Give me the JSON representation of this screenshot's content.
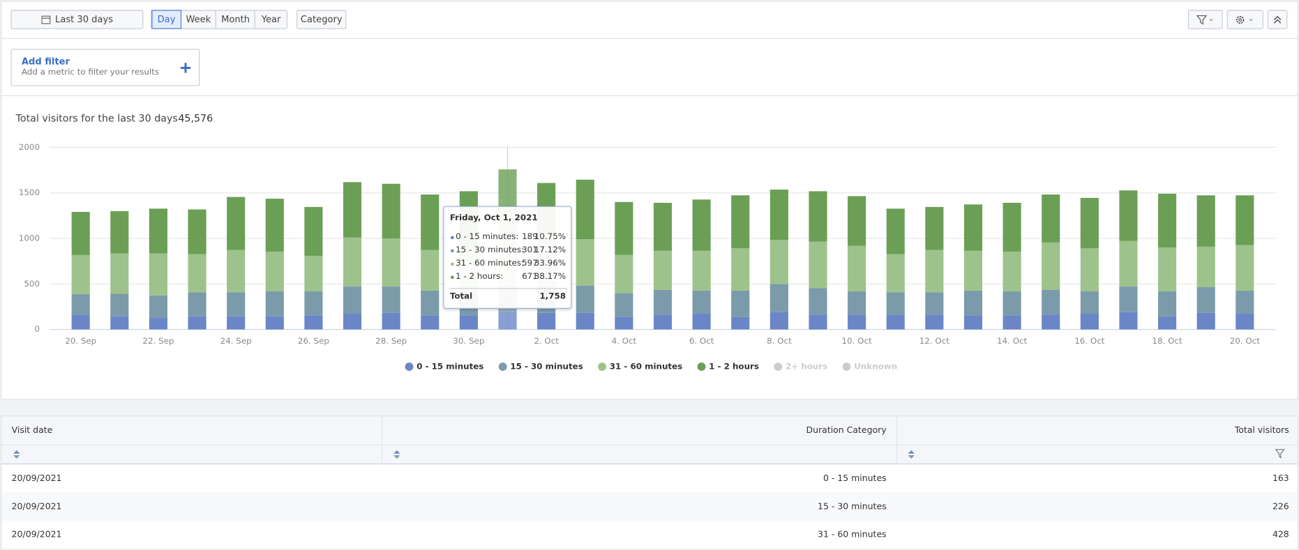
{
  "toolbar": {
    "date_range": "Last 30 days",
    "periods": [
      "Day",
      "Week",
      "Month",
      "Year"
    ],
    "active_period": 0,
    "category": "Category"
  },
  "filter": {
    "title": "Add filter",
    "subtitle": "Add a metric to filter your results"
  },
  "summary": {
    "label": "Total visitors for the last 30 days :",
    "value": "45,576"
  },
  "chart_data": {
    "type": "stacked_bar",
    "categories": [
      "20. Sep",
      null,
      "22. Sep",
      null,
      "24. Sep",
      null,
      "26. Sep",
      null,
      "28. Sep",
      null,
      "30. Sep",
      null,
      "2. Oct",
      null,
      "4. Oct",
      null,
      "6. Oct",
      null,
      "8. Oct",
      null,
      "10. Oct",
      null,
      "12. Oct",
      null,
      "14. Oct",
      null,
      "16. Oct",
      null,
      "18. Oct",
      null,
      "20. Oct"
    ],
    "series": [
      {
        "name": "0 - 15 minutes",
        "color": "#6b86c7",
        "values": [
          163,
          145,
          127,
          145,
          145,
          145,
          155,
          173,
          182,
          155,
          155,
          189,
          182,
          182,
          136,
          164,
          173,
          136,
          191,
          164,
          164,
          164,
          164,
          155,
          155,
          164,
          173,
          191,
          145,
          182,
          173
        ]
      },
      {
        "name": "15 - 30 minutes",
        "color": "#7b9bab",
        "values": [
          226,
          246,
          246,
          264,
          264,
          273,
          263,
          300,
          291,
          272,
          263,
          301,
          273,
          300,
          264,
          272,
          254,
          291,
          309,
          291,
          254,
          245,
          245,
          272,
          263,
          272,
          245,
          282,
          273,
          282,
          254
        ]
      },
      {
        "name": "31 - 60 minutes",
        "color": "#9ec28b",
        "values": [
          428,
          445,
          463,
          418,
          464,
          437,
          391,
          536,
          527,
          446,
          473,
          597,
          527,
          509,
          418,
          428,
          437,
          464,
          482,
          509,
          500,
          418,
          464,
          437,
          437,
          519,
          473,
          500,
          482,
          445,
          500
        ]
      },
      {
        "name": "1 - 2 hours",
        "color": "#6c9f56",
        "values": [
          474,
          464,
          491,
          491,
          582,
          581,
          536,
          609,
          600,
          609,
          627,
          671,
          627,
          654,
          582,
          527,
          563,
          582,
          554,
          554,
          546,
          500,
          472,
          509,
          536,
          527,
          554,
          554,
          591,
          564,
          546
        ]
      },
      {
        "name": "2+ hours",
        "color": "#cccccc",
        "visible": false
      },
      {
        "name": "Unknown",
        "color": "#cccccc",
        "visible": false
      }
    ],
    "ylim": [
      0,
      2000
    ],
    "yticks": [
      0,
      500,
      1000,
      1500,
      2000
    ],
    "grid": true,
    "highlight": 11
  },
  "tooltip": {
    "title": "Friday, Oct 1, 2021",
    "rows": [
      {
        "label": "0 - 15 minutes:",
        "value": 189,
        "percent": "10.75%"
      },
      {
        "label": "15 - 30 minutes:",
        "value": 301,
        "percent": "17.12%"
      },
      {
        "label": "31 - 60 minutes:",
        "value": 597,
        "percent": "33.96%"
      },
      {
        "label": "1 - 2 hours:",
        "value": 671,
        "percent": "38.17%"
      }
    ],
    "total_label": "Total",
    "total_value": "1,758"
  },
  "table": {
    "columns": [
      "Visit date",
      "Duration Category",
      "Total visitors"
    ],
    "rows": [
      [
        "20/09/2021",
        "0 - 15 minutes",
        163
      ],
      [
        "20/09/2021",
        "15 - 30 minutes",
        226
      ],
      [
        "20/09/2021",
        "31 - 60 minutes",
        428
      ]
    ]
  }
}
